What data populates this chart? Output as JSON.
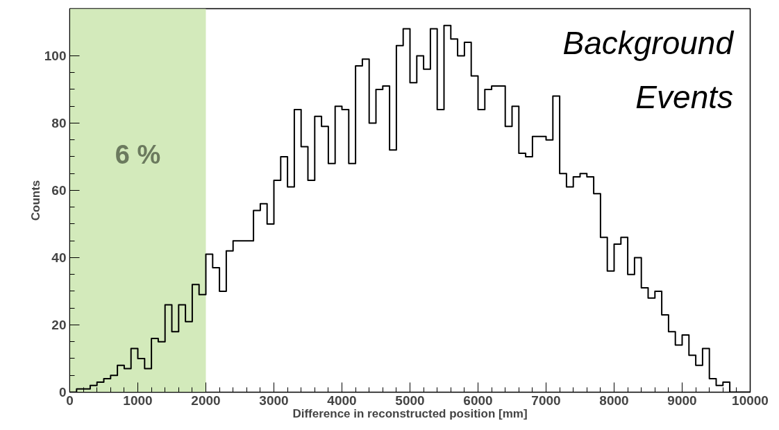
{
  "chart_data": {
    "type": "histogram",
    "xlabel": "Difference in reconstructed position [mm]",
    "ylabel": "Counts",
    "bins": [
      0,
      100,
      200,
      300,
      400,
      500,
      600,
      700,
      800,
      900,
      1000,
      1100,
      1200,
      1300,
      1400,
      1500,
      1600,
      1700,
      1800,
      1900,
      2000,
      2100,
      2200,
      2300,
      2400,
      2500,
      2600,
      2700,
      2800,
      2900,
      3000,
      3100,
      3200,
      3300,
      3400,
      3500,
      3600,
      3700,
      3800,
      3900,
      4000,
      4100,
      4200,
      4300,
      4400,
      4500,
      4600,
      4700,
      4800,
      4900,
      5000,
      5100,
      5200,
      5300,
      5400,
      5500,
      5600,
      5700,
      5800,
      5900,
      6000,
      6100,
      6200,
      6300,
      6400,
      6500,
      6600,
      6700,
      6800,
      6900,
      7000,
      7100,
      7200,
      7300,
      7400,
      7500,
      7600,
      7700,
      7800,
      7900,
      8000,
      8100,
      8200,
      8300,
      8400,
      8500,
      8600,
      8700,
      8800,
      8900,
      9000,
      9100,
      9200,
      9300,
      9400,
      9500,
      9600,
      9700,
      9800,
      9900,
      10000
    ],
    "values": [
      0,
      1,
      1,
      2,
      3,
      4,
      5,
      8,
      7,
      13,
      10,
      7,
      16,
      15,
      26,
      18,
      26,
      21,
      32,
      29,
      41,
      37,
      30,
      42,
      45,
      45,
      45,
      54,
      56,
      50,
      63,
      70,
      61,
      84,
      73,
      63,
      82,
      79,
      68,
      85,
      84,
      68,
      97,
      99,
      80,
      90,
      91,
      72,
      103,
      108,
      92,
      100,
      96,
      108,
      84,
      109,
      105,
      100,
      104,
      94,
      84,
      90,
      91,
      91,
      79,
      85,
      71,
      70,
      76,
      76,
      75,
      88,
      65,
      61,
      64,
      65,
      64,
      59,
      46,
      36,
      44,
      46,
      35,
      40,
      31,
      28,
      30,
      23,
      18,
      14,
      17,
      11,
      8,
      13,
      4,
      2,
      3,
      0,
      0,
      0
    ],
    "color": "#000000",
    "xlim": [
      0,
      10000
    ],
    "ylim": [
      0,
      114
    ],
    "xticks": [
      0,
      1000,
      2000,
      3000,
      4000,
      5000,
      6000,
      7000,
      8000,
      9000,
      10000
    ],
    "yticks": [
      0,
      20,
      40,
      60,
      80,
      100
    ],
    "bands": [
      {
        "axis": "x",
        "from": 0,
        "to": 2000,
        "label": "6 %",
        "color": "#d3eabb"
      }
    ],
    "annotations": [
      "Background",
      "Events"
    ],
    "grid": false
  }
}
